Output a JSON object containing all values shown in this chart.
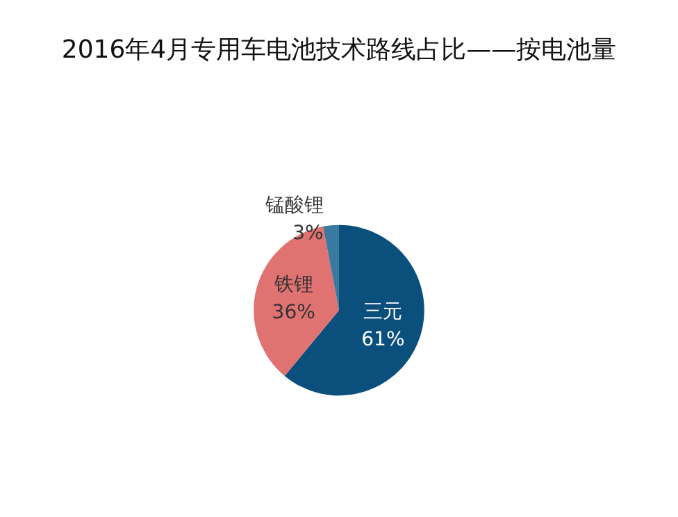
{
  "chart_data": {
    "type": "pie",
    "title": "2016年4月专用车电池技术路线占比——按电池量",
    "categories": [
      "三元",
      "铁锂",
      "锰酸锂"
    ],
    "values": [
      61,
      36,
      3
    ],
    "value_labels": [
      "61%",
      "36%",
      "3%"
    ],
    "colors": [
      "#0b4f7d",
      "#e07272",
      "#3a79a0"
    ],
    "legend": false
  }
}
